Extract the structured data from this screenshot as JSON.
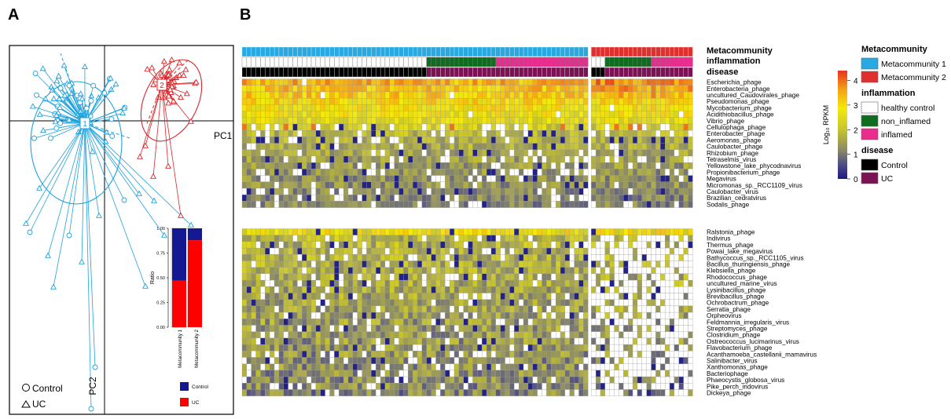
{
  "panels": {
    "a": "A",
    "b": "B"
  },
  "colors": {
    "meta1": "#29a9e1",
    "meta2": "#e0302e",
    "control_group": "#1fa2dd",
    "uc_group": "#d9262a",
    "healthy": "#ffffff",
    "non_inflamed": "#0e6d1e",
    "inflamed": "#ea2c8f",
    "disease_control": "#000000",
    "disease_uc": "#7b1253",
    "bar_control": "#141891",
    "bar_uc": "#ff0000"
  },
  "chart_data": [
    {
      "type": "scatter",
      "title": "",
      "axis_labels": {
        "x": "PC1",
        "y": "PC2"
      },
      "centroids": [
        {
          "label": "1"
        },
        {
          "label": "2"
        }
      ],
      "legend": [
        {
          "symbol": "circle",
          "label": "Control"
        },
        {
          "symbol": "triangle",
          "label": "UC"
        }
      ],
      "grid": false
    },
    {
      "type": "bar",
      "stacked": true,
      "categories": [
        "Metacommunity 1",
        "Metacommunity 2"
      ],
      "series": [
        {
          "name": "UC",
          "values": [
            0.47,
            0.88
          ]
        },
        {
          "name": "Control",
          "values": [
            0.53,
            0.12
          ]
        }
      ],
      "ylabel": "Ratio",
      "ylim": [
        0,
        1
      ],
      "yticks": [
        "0.00",
        "0.25",
        "0.50",
        "0.75",
        "1.00"
      ],
      "legend": [
        "Control",
        "UC"
      ]
    },
    {
      "type": "heatmap",
      "row_labels_group1": [
        "Escherichia_phage",
        "Enterobacteria_phage",
        "uncultured_Caudovirales_phage",
        "Pseudomonas_phage",
        "Mycobacterium_phage",
        "Acidithiobacillus_phage",
        "Vibrio_phage",
        "Cellulophaga_phage",
        "Enterobacter_phage",
        "Aeromonas_phage",
        "Caulobacter_phage",
        "Rhizobium_phage",
        "Tetraselmis_virus",
        "Yellowstone_lake_phycodnavirus",
        "Propionibacterium_phage",
        "Megavirus",
        "Micromonas_sp._RCC1109_virus",
        "Caulobacter_virus",
        "Brazilian_cedratvirus",
        "Sodalis_phage"
      ],
      "row_labels_group2": [
        "Ralstonia_phage",
        "Indivirus",
        "Thermus_phage",
        "Powai_lake_megavirus",
        "Bathycoccus_sp._RCC1105_virus",
        "Bacillus_thuringiensis_phage",
        "Klebsiella_phage",
        "Rhodococcus_phage",
        "uncultured_marine_virus",
        "Lysinibacillus_phage",
        "Brevibacillus_phage",
        "Ochrobactrum_phage",
        "Serratia_phage",
        "Orpheovirus",
        "Feldmannia_irregularis_virus",
        "Streptomyces_phage",
        "Clostridium_phage",
        "Ostreococcus_lucimarinus_virus",
        "Flavobacterium_phage",
        "Acanthamoeba_castellanii_mamavirus",
        "Salinibacter_virus",
        "Xanthomonas_phage",
        "Bacteriophage",
        "Phaeocystis_globosa_virus",
        "Pike_perch_iridovirus",
        "Dickeya_phage"
      ],
      "annotation_rows": [
        "Metacommunity",
        "inflammation",
        "disease"
      ],
      "colorbar": {
        "label": "Log₁₀ RPKM",
        "ticks": [
          0,
          1,
          2,
          3,
          4
        ]
      },
      "legend": [
        {
          "title": "Metacommunity",
          "items": [
            {
              "label": "Metacommunity 1",
              "color": "#29a9e1"
            },
            {
              "label": "Metacommunity 2",
              "color": "#e0302e"
            }
          ]
        },
        {
          "title": "inflammation",
          "items": [
            {
              "label": "healthy control",
              "color": "#ffffff"
            },
            {
              "label": "non_inflamed",
              "color": "#0e6d1e"
            },
            {
              "label": "inflamed",
              "color": "#ea2c8f"
            }
          ]
        },
        {
          "title": "disease",
          "items": [
            {
              "label": "Control",
              "color": "#000000"
            },
            {
              "label": "UC",
              "color": "#7b1253"
            }
          ]
        }
      ]
    }
  ]
}
